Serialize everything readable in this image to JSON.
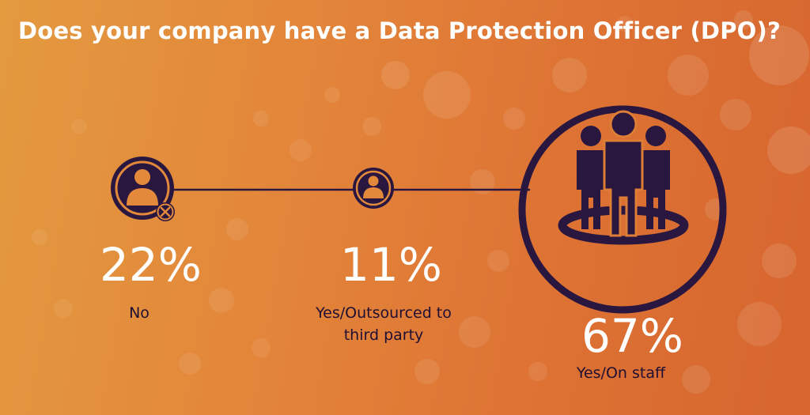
{
  "title": "Does your company have a Data Protection Officer (DPO)?",
  "colors": {
    "icon": "#2a1740",
    "text_white": "#ffffff",
    "label": "#1e0f33"
  },
  "chart_data": {
    "type": "infographic",
    "categories": [
      "No",
      "Yes/Outsourced to third party",
      "Yes/On staff"
    ],
    "values": [
      22,
      11,
      67
    ],
    "value_labels": [
      "22%",
      "11%",
      "67%"
    ],
    "unit": "%",
    "icons": [
      "person-declined-icon",
      "person-icon",
      "group-staff-icon"
    ]
  },
  "items": [
    {
      "value": "22%",
      "label_lines": [
        "No"
      ]
    },
    {
      "value": "11%",
      "label_lines": [
        "Yes/Outsourced to",
        "third party"
      ]
    },
    {
      "value": "67%",
      "label_lines": [
        "Yes/On staff"
      ]
    }
  ]
}
